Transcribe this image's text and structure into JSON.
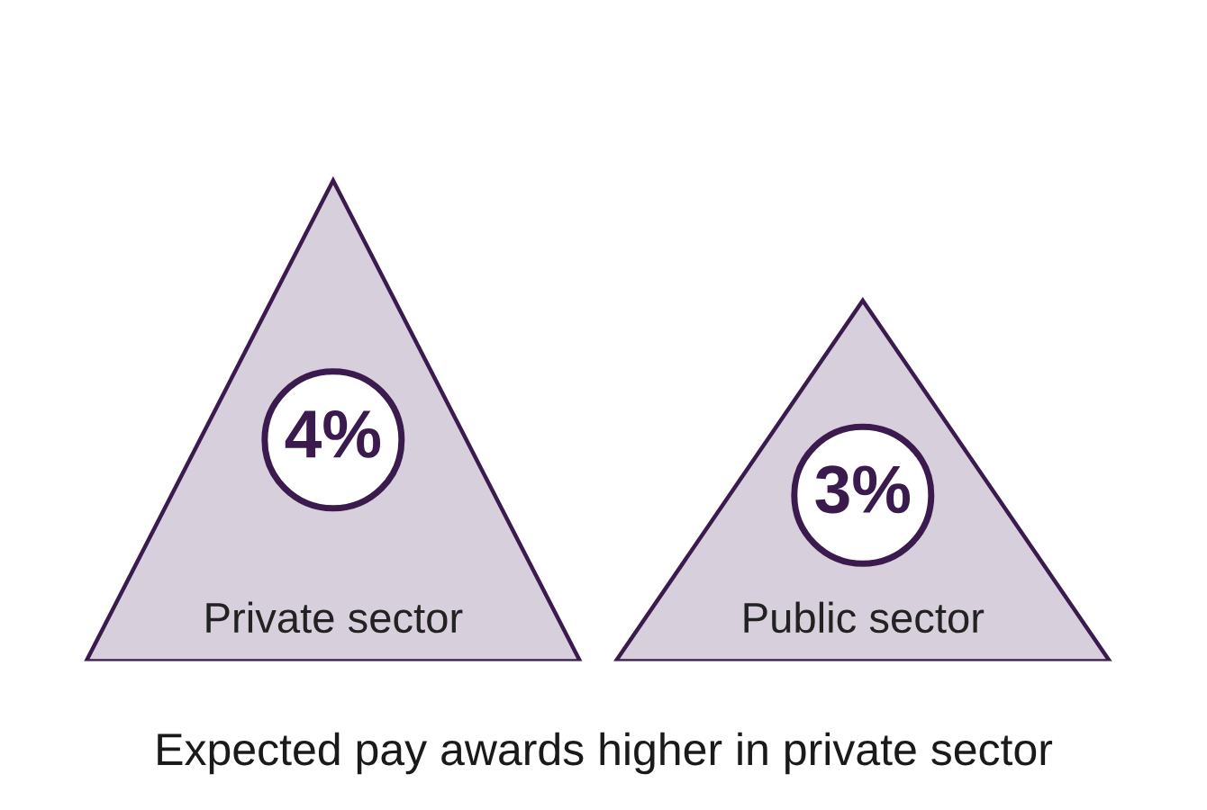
{
  "chart_data": {
    "type": "other",
    "title": "Expected pay awards higher in private sector",
    "categories": [
      "Private sector",
      "Public sector"
    ],
    "values": [
      4,
      3
    ],
    "value_labels": [
      "4%",
      "3%"
    ],
    "legend": false
  }
}
